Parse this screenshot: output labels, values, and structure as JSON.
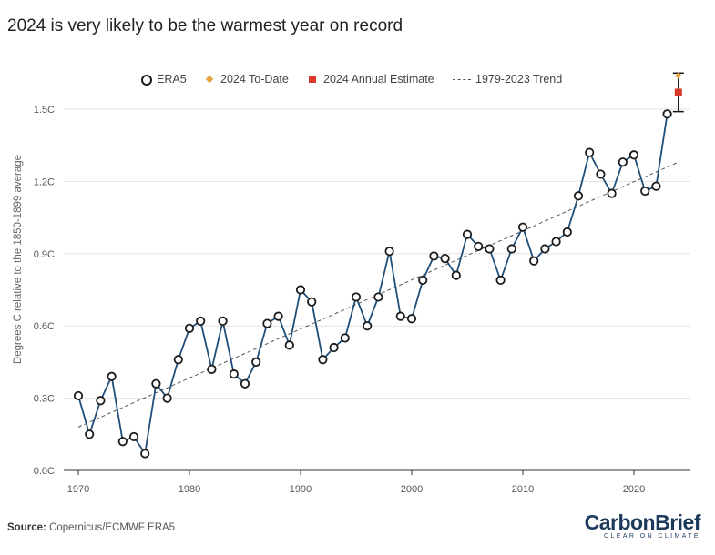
{
  "title": "2024 is very likely to be the warmest year on record",
  "source_label": "Source:",
  "source_text": "Copernicus/ECMWF ERA5",
  "logo": {
    "part1": "Carbon",
    "part2": "Brief",
    "tagline": "CLEAR ON CLIMATE"
  },
  "colors": {
    "line": "#1f4e79",
    "marker_edge": "#1b1b1b",
    "to_date": "#e8a33d",
    "estimate": "#d9392a",
    "trend": "#555555",
    "grid": "#e3e3e3"
  },
  "chart_data": {
    "type": "line",
    "title": "2024 is very likely to be the warmest year on record",
    "ylabel": "Degrees C relative to the 1850-1899 average",
    "xlabel": "",
    "xlim": [
      1969,
      2025.5
    ],
    "ylim": [
      0,
      1.5
    ],
    "x_ticks": [
      1970,
      1980,
      1990,
      2000,
      2010,
      2020
    ],
    "y_ticks": [
      0.0,
      0.3,
      0.6,
      0.9,
      1.2,
      1.5
    ],
    "y_tick_labels": [
      "0.0C",
      "0.3C",
      "0.6C",
      "0.9C",
      "1.2C",
      "1.5C"
    ],
    "grid": true,
    "legend_position": "top",
    "legend": [
      "ERA5",
      "2024 To-Date",
      "2024 Annual Estimate",
      "1979-2023 Trend"
    ],
    "series": [
      {
        "name": "ERA5",
        "x": [
          1970,
          1971,
          1972,
          1973,
          1974,
          1975,
          1976,
          1977,
          1978,
          1979,
          1980,
          1981,
          1982,
          1983,
          1984,
          1985,
          1986,
          1987,
          1988,
          1989,
          1990,
          1991,
          1992,
          1993,
          1994,
          1995,
          1996,
          1997,
          1998,
          1999,
          2000,
          2001,
          2002,
          2003,
          2004,
          2005,
          2006,
          2007,
          2008,
          2009,
          2010,
          2011,
          2012,
          2013,
          2014,
          2015,
          2016,
          2017,
          2018,
          2019,
          2020,
          2021,
          2022,
          2023
        ],
        "values": [
          0.31,
          0.15,
          0.29,
          0.39,
          0.12,
          0.14,
          0.07,
          0.36,
          0.3,
          0.46,
          0.59,
          0.62,
          0.42,
          0.62,
          0.4,
          0.36,
          0.45,
          0.61,
          0.64,
          0.52,
          0.75,
          0.7,
          0.46,
          0.51,
          0.55,
          0.72,
          0.6,
          0.72,
          0.91,
          0.64,
          0.63,
          0.79,
          0.89,
          0.88,
          0.81,
          0.98,
          0.93,
          0.92,
          0.79,
          0.92,
          1.01,
          0.87,
          0.92,
          0.95,
          0.99,
          1.14,
          1.32,
          1.23,
          1.15,
          1.28,
          1.31,
          1.16,
          1.18,
          1.48
        ]
      },
      {
        "name": "2024 To-Date",
        "x": [
          2024
        ],
        "values": [
          1.64
        ]
      },
      {
        "name": "2024 Annual Estimate",
        "x": [
          2024
        ],
        "values": [
          1.57
        ],
        "error_low": [
          1.49
        ],
        "error_high": [
          1.65
        ]
      },
      {
        "name": "1979-2023 Trend",
        "x": [
          1970,
          2024
        ],
        "values": [
          0.18,
          1.28
        ]
      }
    ]
  }
}
